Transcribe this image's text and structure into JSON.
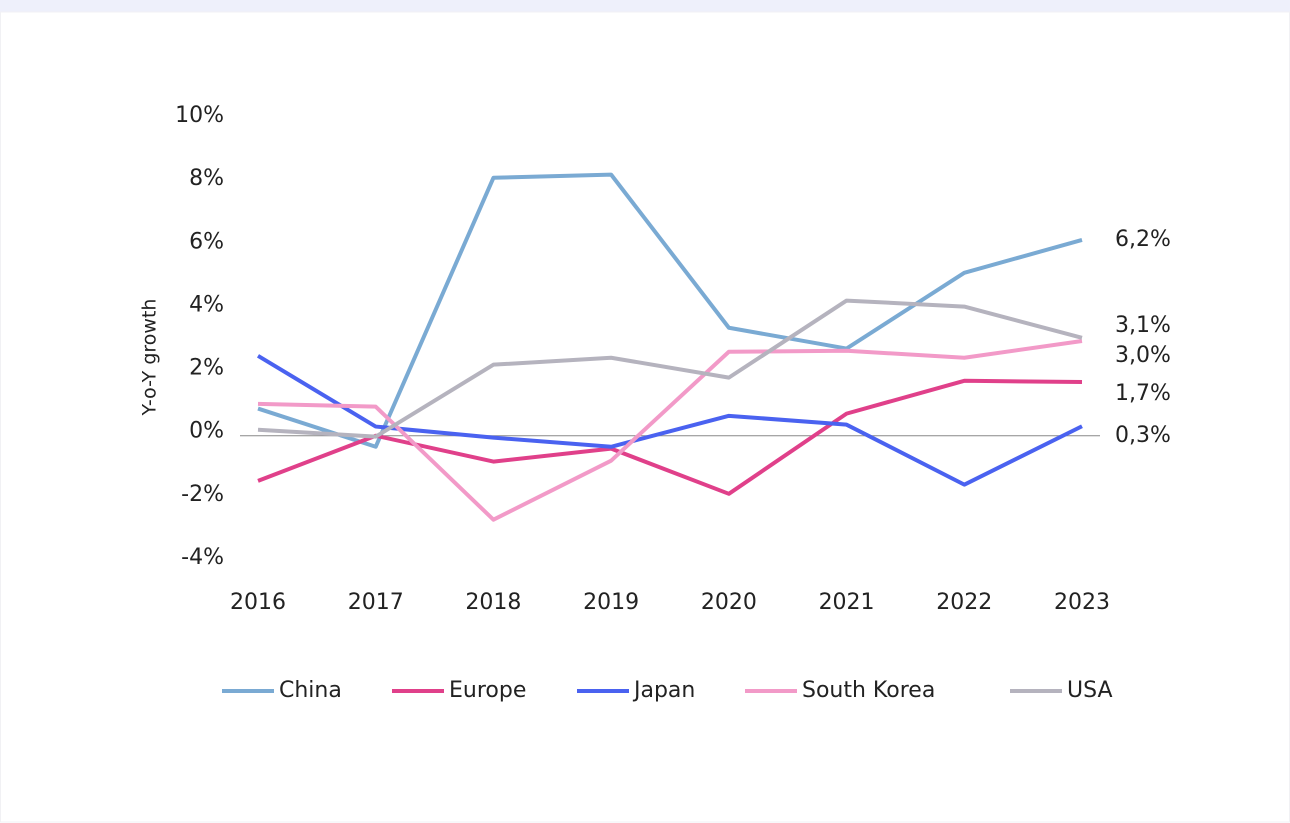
{
  "chart_data": {
    "type": "line",
    "y_label": "Y-o-Y growth",
    "categories": [
      "2016",
      "2017",
      "2018",
      "2019",
      "2020",
      "2021",
      "2022",
      "2023"
    ],
    "series": [
      {
        "name": "China",
        "color": "#7aaad3",
        "values": [
          0.86,
          -0.35,
          8.17,
          8.27,
          3.42,
          2.76,
          5.16,
          6.2
        ],
        "value_labels": [
          null,
          null,
          null,
          null,
          null,
          null,
          null,
          "6,2%"
        ]
      },
      {
        "name": "Europe",
        "color": "#e0408a",
        "values": [
          -1.43,
          0,
          -0.82,
          -0.41,
          -1.84,
          0.7,
          1.74,
          1.7
        ],
        "value_labels": [
          null,
          null,
          null,
          null,
          null,
          null,
          null,
          "1,7%"
        ]
      },
      {
        "name": "Japan",
        "color": "#4a62f0",
        "values": [
          2.53,
          0.29,
          -0.06,
          -0.35,
          0.63,
          0.35,
          -1.55,
          0.3
        ],
        "value_labels": [
          null,
          null,
          null,
          null,
          null,
          null,
          null,
          "0,3%"
        ]
      },
      {
        "name": "South Korea",
        "color": "#f29ac8",
        "values": [
          1.01,
          0.92,
          -2.66,
          -0.79,
          2.66,
          2.69,
          2.47,
          3.0
        ],
        "value_labels": [
          null,
          null,
          null,
          null,
          null,
          null,
          null,
          "3,0%"
        ]
      },
      {
        "name": "USA",
        "color": "#b5b3be",
        "values": [
          0.19,
          -0.03,
          2.25,
          2.47,
          1.84,
          4.28,
          4.09,
          3.1
        ],
        "value_labels": [
          null,
          null,
          null,
          null,
          null,
          null,
          null,
          "3,1%"
        ]
      }
    ],
    "ylim": [
      -4,
      10
    ],
    "yticks": [
      {
        "value": -4,
        "label": "-4%"
      },
      {
        "value": -2,
        "label": "-2%"
      },
      {
        "value": 0,
        "label": "0%"
      },
      {
        "value": 2,
        "label": "2%"
      },
      {
        "value": 4,
        "label": "4%"
      },
      {
        "value": 6,
        "label": "6%"
      },
      {
        "value": 8,
        "label": "8%"
      },
      {
        "value": 10,
        "label": "10%"
      }
    ],
    "grid": false,
    "legend": "bottom"
  }
}
